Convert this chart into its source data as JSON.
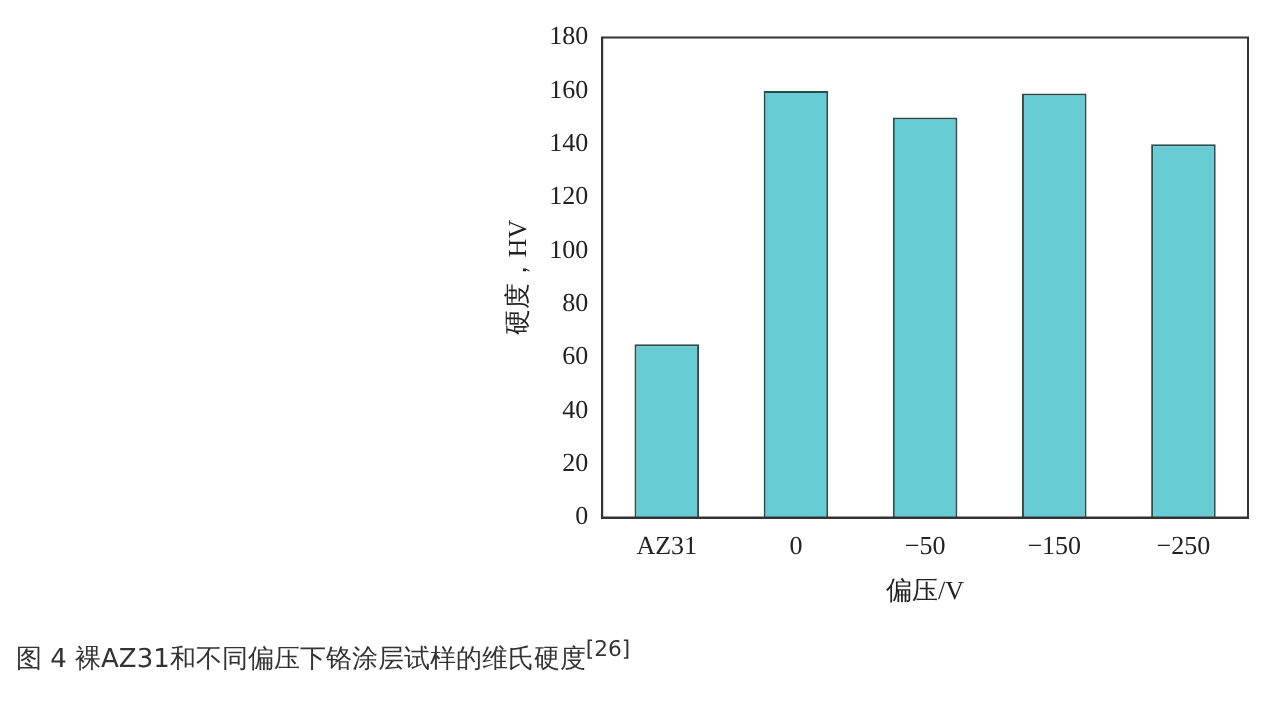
{
  "chart_data": {
    "type": "bar",
    "xlabel": "偏压/V",
    "ylabel": "硬度，HV",
    "categories": [
      "AZ31",
      "0",
      "−50",
      "−150",
      "−250"
    ],
    "values": [
      65,
      160,
      150,
      159,
      140
    ],
    "color": "#68ccd4",
    "ylim": [
      0,
      180
    ],
    "yticks": [
      0,
      20,
      40,
      60,
      80,
      100,
      120,
      140,
      160,
      180
    ],
    "grid": false,
    "legend": false,
    "annotations": [
      "图 4 裸AZ31和不同偏压下铬涂层试样的维氏硬度$^{[26]}$"
    ]
  }
}
